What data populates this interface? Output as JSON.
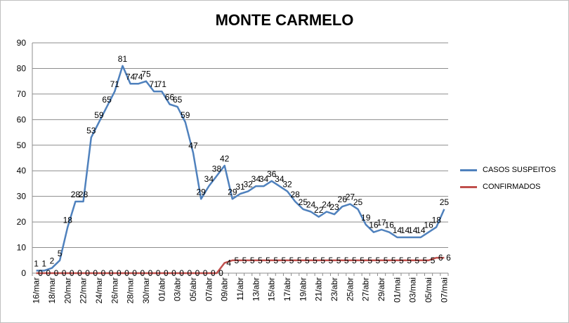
{
  "chart_data": {
    "type": "line",
    "title": "MONTE CARMELO",
    "xlabel": "",
    "ylabel": "",
    "ylim": [
      0,
      90
    ],
    "yticks": [
      0,
      10,
      20,
      30,
      40,
      50,
      60,
      70,
      80,
      90
    ],
    "grid": "horizontal",
    "legend_position": "right",
    "categories": [
      "16/mar",
      "17/mar",
      "18/mar",
      "19/mar",
      "20/mar",
      "21/mar",
      "22/mar",
      "23/mar",
      "24/mar",
      "25/mar",
      "26/mar",
      "27/mar",
      "28/mar",
      "29/mar",
      "30/mar",
      "31/mar",
      "01/abr",
      "02/abr",
      "03/abr",
      "04/abr",
      "05/abr",
      "06/abr",
      "07/abr",
      "08/abr",
      "09/abr",
      "10/abr",
      "11/abr",
      "12/abr",
      "13/abr",
      "14/abr",
      "15/abr",
      "16/abr",
      "17/abr",
      "18/abr",
      "19/abr",
      "20/abr",
      "21/abr",
      "22/abr",
      "23/abr",
      "24/abr",
      "25/abr",
      "26/abr",
      "27/abr",
      "28/abr",
      "29/abr",
      "30/abr",
      "01/mai",
      "02/mai",
      "03/mai",
      "04/mai",
      "05/mai",
      "06/mai",
      "07/mai"
    ],
    "tick_labels": [
      "16/mar",
      "",
      "18/mar",
      "",
      "20/mar",
      "",
      "22/mar",
      "",
      "24/mar",
      "",
      "26/mar",
      "",
      "28/mar",
      "",
      "30/mar",
      "",
      "01/abr",
      "",
      "03/abr",
      "",
      "05/abr",
      "",
      "07/abr",
      "",
      "09/abr",
      "",
      "11/abr",
      "",
      "13/abr",
      "",
      "15/abr",
      "",
      "17/abr",
      "",
      "19/abr",
      "",
      "21/abr",
      "",
      "23/abr",
      "",
      "25/abr",
      "",
      "27/abr",
      "",
      "29/abr",
      "",
      "01/mai",
      "",
      "03/mai",
      "",
      "05/mai",
      "",
      "07/mai"
    ],
    "series": [
      {
        "name": "CASOS SUSPEITOS",
        "color": "#4f81bd",
        "values": [
          1,
          1,
          2,
          5,
          18,
          28,
          28,
          53,
          59,
          65,
          71,
          81,
          74,
          74,
          75,
          71,
          71,
          66,
          65,
          59,
          47,
          29,
          34,
          38,
          42,
          29,
          31,
          32,
          34,
          34,
          36,
          34,
          32,
          28,
          25,
          24,
          22,
          24,
          23,
          26,
          27,
          25,
          19,
          16,
          17,
          16,
          14,
          14,
          14,
          14,
          16,
          18,
          25
        ]
      },
      {
        "name": "CONFIRMADOS",
        "color": "#c0504d",
        "values": [
          0,
          0,
          0,
          0,
          0,
          0,
          0,
          0,
          0,
          0,
          0,
          0,
          0,
          0,
          0,
          0,
          0,
          0,
          0,
          0,
          0,
          0,
          0,
          0,
          4,
          5,
          5,
          5,
          5,
          5,
          5,
          5,
          5,
          5,
          5,
          5,
          5,
          5,
          5,
          5,
          5,
          5,
          5,
          5,
          5,
          5,
          5,
          5,
          5,
          5,
          5,
          6,
          6
        ]
      }
    ]
  }
}
